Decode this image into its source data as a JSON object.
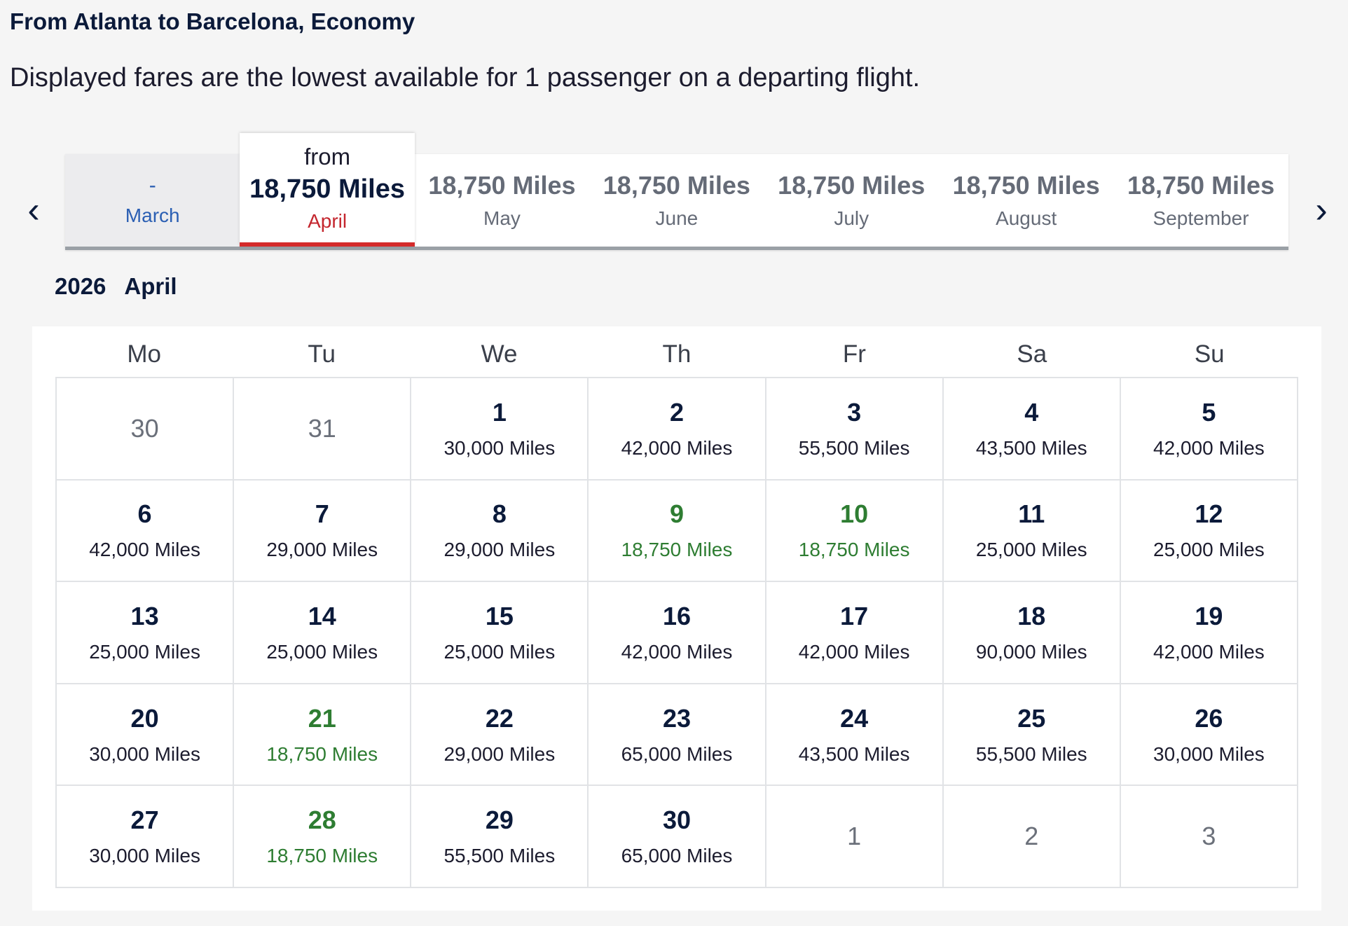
{
  "header": {
    "route": "From Atlanta to Barcelona, Economy",
    "note": "Displayed fares are the lowest available for 1 passenger on a departing flight."
  },
  "month_nav": {
    "prev_icon": "chevron-left-icon",
    "next_icon": "chevron-right-icon",
    "tabs": [
      {
        "fare": "-",
        "month": "March",
        "state": "unavailable"
      },
      {
        "from": "from",
        "fare": "18,750 Miles",
        "month": "April",
        "state": "selected"
      },
      {
        "fare": "18,750 Miles",
        "month": "May",
        "state": "default"
      },
      {
        "fare": "18,750 Miles",
        "month": "June",
        "state": "default"
      },
      {
        "fare": "18,750 Miles",
        "month": "July",
        "state": "default"
      },
      {
        "fare": "18,750 Miles",
        "month": "August",
        "state": "default"
      },
      {
        "fare": "18,750 Miles",
        "month": "September",
        "state": "default"
      }
    ]
  },
  "calendar": {
    "year": "2026",
    "month": "April",
    "weekdays": [
      "Mo",
      "Tu",
      "We",
      "Th",
      "Fr",
      "Sa",
      "Su"
    ],
    "cells": [
      {
        "day": "30",
        "miles": "",
        "type": "other"
      },
      {
        "day": "31",
        "miles": "",
        "type": "other"
      },
      {
        "day": "1",
        "miles": "30,000 Miles",
        "type": "normal"
      },
      {
        "day": "2",
        "miles": "42,000 Miles",
        "type": "normal"
      },
      {
        "day": "3",
        "miles": "55,500 Miles",
        "type": "normal"
      },
      {
        "day": "4",
        "miles": "43,500 Miles",
        "type": "normal"
      },
      {
        "day": "5",
        "miles": "42,000 Miles",
        "type": "normal"
      },
      {
        "day": "6",
        "miles": "42,000 Miles",
        "type": "normal"
      },
      {
        "day": "7",
        "miles": "29,000 Miles",
        "type": "normal"
      },
      {
        "day": "8",
        "miles": "29,000 Miles",
        "type": "normal"
      },
      {
        "day": "9",
        "miles": "18,750 Miles",
        "type": "lowest"
      },
      {
        "day": "10",
        "miles": "18,750 Miles",
        "type": "lowest"
      },
      {
        "day": "11",
        "miles": "25,000 Miles",
        "type": "normal"
      },
      {
        "day": "12",
        "miles": "25,000 Miles",
        "type": "normal"
      },
      {
        "day": "13",
        "miles": "25,000 Miles",
        "type": "normal"
      },
      {
        "day": "14",
        "miles": "25,000 Miles",
        "type": "normal"
      },
      {
        "day": "15",
        "miles": "25,000 Miles",
        "type": "normal"
      },
      {
        "day": "16",
        "miles": "42,000 Miles",
        "type": "normal"
      },
      {
        "day": "17",
        "miles": "42,000 Miles",
        "type": "normal"
      },
      {
        "day": "18",
        "miles": "90,000 Miles",
        "type": "normal"
      },
      {
        "day": "19",
        "miles": "42,000 Miles",
        "type": "normal"
      },
      {
        "day": "20",
        "miles": "30,000 Miles",
        "type": "normal"
      },
      {
        "day": "21",
        "miles": "18,750 Miles",
        "type": "lowest"
      },
      {
        "day": "22",
        "miles": "29,000 Miles",
        "type": "normal"
      },
      {
        "day": "23",
        "miles": "65,000 Miles",
        "type": "normal"
      },
      {
        "day": "24",
        "miles": "43,500 Miles",
        "type": "normal"
      },
      {
        "day": "25",
        "miles": "55,500 Miles",
        "type": "normal"
      },
      {
        "day": "26",
        "miles": "30,000 Miles",
        "type": "normal"
      },
      {
        "day": "27",
        "miles": "30,000 Miles",
        "type": "normal"
      },
      {
        "day": "28",
        "miles": "18,750 Miles",
        "type": "lowest"
      },
      {
        "day": "29",
        "miles": "55,500 Miles",
        "type": "normal"
      },
      {
        "day": "30",
        "miles": "65,000 Miles",
        "type": "normal"
      },
      {
        "day": "1",
        "miles": "",
        "type": "other"
      },
      {
        "day": "2",
        "miles": "",
        "type": "other"
      },
      {
        "day": "3",
        "miles": "",
        "type": "other"
      }
    ]
  },
  "colors": {
    "lowest_fare": "#2e7d32",
    "selected_accent": "#c4262e",
    "unavailable_link": "#2b5fb3"
  }
}
